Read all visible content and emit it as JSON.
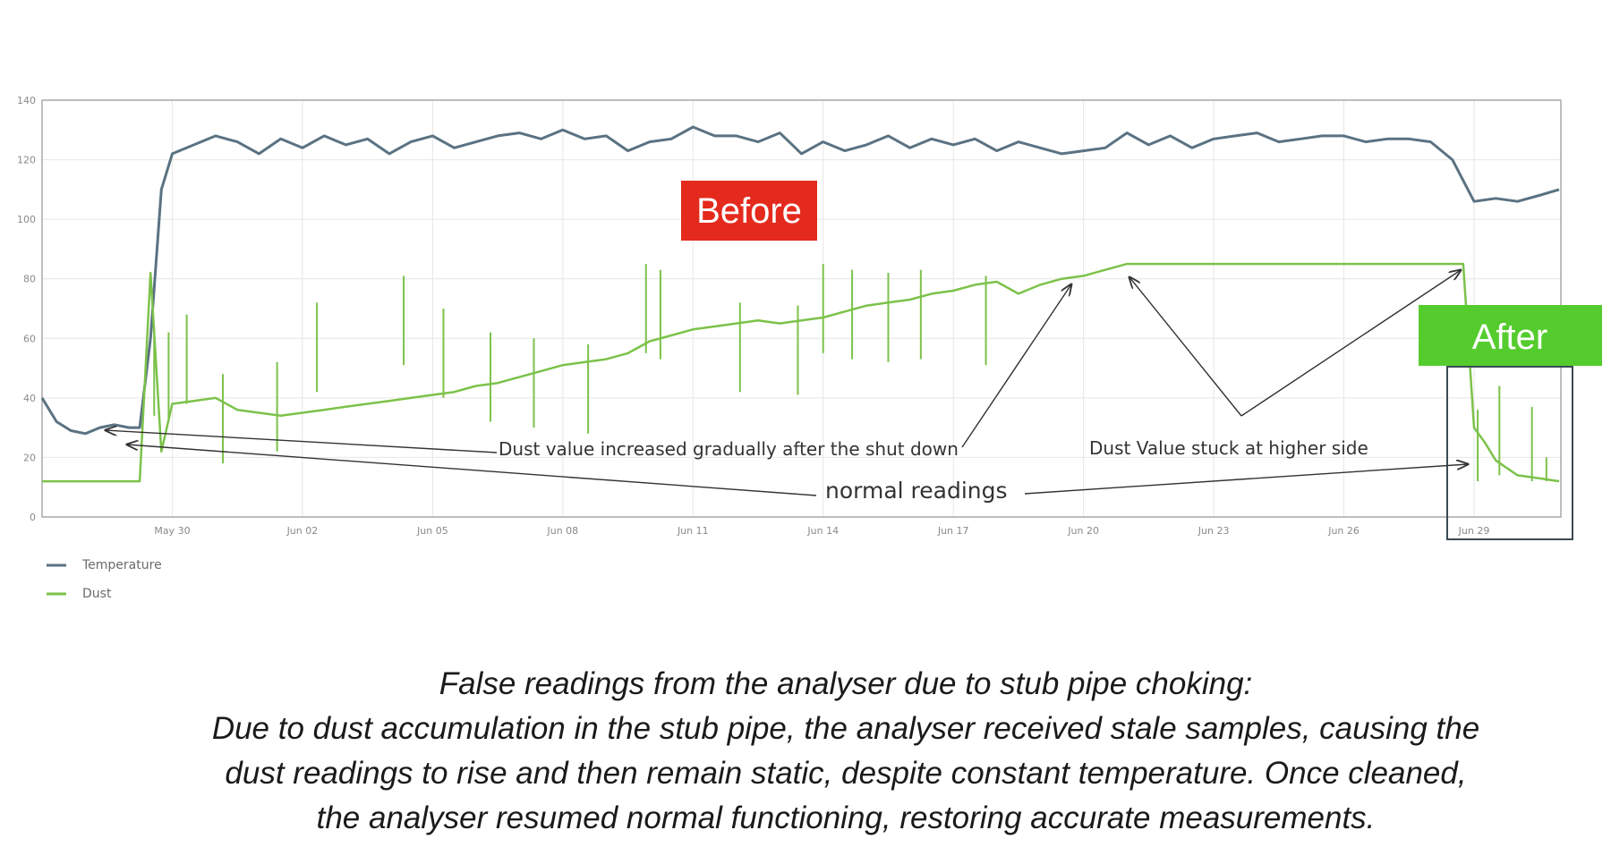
{
  "chart_data": {
    "type": "line",
    "title": "",
    "xlabel": "",
    "ylabel": "",
    "ylim": [
      0,
      140
    ],
    "y_ticks": [
      0,
      20,
      40,
      60,
      80,
      100,
      120,
      140
    ],
    "x_range": [
      "May 27",
      "Jun 30"
    ],
    "x_ticks": [
      {
        "date": "May 30",
        "label": "May 30"
      },
      {
        "date": "Jun 02",
        "label": "Jun 02"
      },
      {
        "date": "Jun 05",
        "label": "Jun 05"
      },
      {
        "date": "Jun 08",
        "label": "Jun 08"
      },
      {
        "date": "Jun 11",
        "label": "Jun 11"
      },
      {
        "date": "Jun 14",
        "label": "Jun 14"
      },
      {
        "date": "Jun 17",
        "label": "Jun 17"
      },
      {
        "date": "Jun 20",
        "label": "Jun 20"
      },
      {
        "date": "Jun 23",
        "label": "Jun 23"
      },
      {
        "date": "Jun 26",
        "label": "Jun 26"
      },
      {
        "date": "Jun 29",
        "label": "Jun 29"
      }
    ],
    "grid": true,
    "legend_position": "bottom-left",
    "series": [
      {
        "name": "Temperature",
        "color": "#5a7282",
        "points": [
          [
            "May 27 00:00",
            40
          ],
          [
            "May 27 08:00",
            32
          ],
          [
            "May 27 16:00",
            29
          ],
          [
            "May 28 00:00",
            28
          ],
          [
            "May 28 08:00",
            30
          ],
          [
            "May 28 16:00",
            31
          ],
          [
            "May 29 00:00",
            30
          ],
          [
            "May 29 06:00",
            30
          ],
          [
            "May 29 12:00",
            60
          ],
          [
            "May 29 18:00",
            110
          ],
          [
            "May 30 00:00",
            122
          ],
          [
            "May 30 12:00",
            125
          ],
          [
            "May 31 00:00",
            128
          ],
          [
            "May 31 12:00",
            126
          ],
          [
            "Jun 01 00:00",
            122
          ],
          [
            "Jun 01 12:00",
            127
          ],
          [
            "Jun 02 00:00",
            124
          ],
          [
            "Jun 02 12:00",
            128
          ],
          [
            "Jun 03 00:00",
            125
          ],
          [
            "Jun 03 12:00",
            127
          ],
          [
            "Jun 04 00:00",
            122
          ],
          [
            "Jun 04 12:00",
            126
          ],
          [
            "Jun 05 00:00",
            128
          ],
          [
            "Jun 05 12:00",
            124
          ],
          [
            "Jun 06 00:00",
            126
          ],
          [
            "Jun 06 12:00",
            128
          ],
          [
            "Jun 07 00:00",
            129
          ],
          [
            "Jun 07 12:00",
            127
          ],
          [
            "Jun 08 00:00",
            130
          ],
          [
            "Jun 08 12:00",
            127
          ],
          [
            "Jun 09 00:00",
            128
          ],
          [
            "Jun 09 12:00",
            123
          ],
          [
            "Jun 10 00:00",
            126
          ],
          [
            "Jun 10 12:00",
            127
          ],
          [
            "Jun 11 00:00",
            131
          ],
          [
            "Jun 11 12:00",
            128
          ],
          [
            "Jun 12 00:00",
            128
          ],
          [
            "Jun 12 12:00",
            126
          ],
          [
            "Jun 13 00:00",
            129
          ],
          [
            "Jun 13 12:00",
            122
          ],
          [
            "Jun 14 00:00",
            126
          ],
          [
            "Jun 14 12:00",
            123
          ],
          [
            "Jun 15 00:00",
            125
          ],
          [
            "Jun 15 12:00",
            128
          ],
          [
            "Jun 16 00:00",
            124
          ],
          [
            "Jun 16 12:00",
            127
          ],
          [
            "Jun 17 00:00",
            125
          ],
          [
            "Jun 17 12:00",
            127
          ],
          [
            "Jun 18 00:00",
            123
          ],
          [
            "Jun 18 12:00",
            126
          ],
          [
            "Jun 19 00:00",
            124
          ],
          [
            "Jun 19 12:00",
            122
          ],
          [
            "Jun 20 00:00",
            123
          ],
          [
            "Jun 20 12:00",
            124
          ],
          [
            "Jun 21 00:00",
            129
          ],
          [
            "Jun 21 12:00",
            125
          ],
          [
            "Jun 22 00:00",
            128
          ],
          [
            "Jun 22 12:00",
            124
          ],
          [
            "Jun 23 00:00",
            127
          ],
          [
            "Jun 23 12:00",
            128
          ],
          [
            "Jun 24 00:00",
            129
          ],
          [
            "Jun 24 12:00",
            126
          ],
          [
            "Jun 25 00:00",
            127
          ],
          [
            "Jun 25 12:00",
            128
          ],
          [
            "Jun 26 00:00",
            128
          ],
          [
            "Jun 26 12:00",
            126
          ],
          [
            "Jun 27 00:00",
            127
          ],
          [
            "Jun 27 12:00",
            127
          ],
          [
            "Jun 28 00:00",
            126
          ],
          [
            "Jun 28 12:00",
            120
          ],
          [
            "Jun 29 00:00",
            106
          ],
          [
            "Jun 29 12:00",
            107
          ],
          [
            "Jun 30 00:00",
            106
          ],
          [
            "Jun 30 12:00",
            108
          ],
          [
            "Jun 30 23:00",
            110
          ]
        ]
      },
      {
        "name": "Dust",
        "color": "#7cc24a",
        "points": [
          [
            "May 27 00:00",
            12
          ],
          [
            "May 27 12:00",
            12
          ],
          [
            "May 28 00:00",
            12
          ],
          [
            "May 28 12:00",
            12
          ],
          [
            "May 29 00:00",
            12
          ],
          [
            "May 29 06:00",
            12
          ],
          [
            "May 29 12:00",
            82
          ],
          [
            "May 29 18:00",
            22
          ],
          [
            "May 30 00:00",
            38
          ],
          [
            "May 30 12:00",
            39
          ],
          [
            "May 31 00:00",
            40
          ],
          [
            "May 31 12:00",
            36
          ],
          [
            "Jun 01 00:00",
            35
          ],
          [
            "Jun 01 12:00",
            34
          ],
          [
            "Jun 02 00:00",
            35
          ],
          [
            "Jun 02 12:00",
            36
          ],
          [
            "Jun 03 00:00",
            37
          ],
          [
            "Jun 03 12:00",
            38
          ],
          [
            "Jun 04 00:00",
            39
          ],
          [
            "Jun 04 12:00",
            40
          ],
          [
            "Jun 05 00:00",
            41
          ],
          [
            "Jun 05 12:00",
            42
          ],
          [
            "Jun 06 00:00",
            44
          ],
          [
            "Jun 06 12:00",
            45
          ],
          [
            "Jun 07 00:00",
            47
          ],
          [
            "Jun 07 12:00",
            49
          ],
          [
            "Jun 08 00:00",
            51
          ],
          [
            "Jun 08 12:00",
            52
          ],
          [
            "Jun 09 00:00",
            53
          ],
          [
            "Jun 09 12:00",
            55
          ],
          [
            "Jun 10 00:00",
            59
          ],
          [
            "Jun 10 12:00",
            61
          ],
          [
            "Jun 11 00:00",
            63
          ],
          [
            "Jun 11 12:00",
            64
          ],
          [
            "Jun 12 00:00",
            65
          ],
          [
            "Jun 12 12:00",
            66
          ],
          [
            "Jun 13 00:00",
            65
          ],
          [
            "Jun 13 12:00",
            66
          ],
          [
            "Jun 14 00:00",
            67
          ],
          [
            "Jun 14 12:00",
            69
          ],
          [
            "Jun 15 00:00",
            71
          ],
          [
            "Jun 15 12:00",
            72
          ],
          [
            "Jun 16 00:00",
            73
          ],
          [
            "Jun 16 12:00",
            75
          ],
          [
            "Jun 17 00:00",
            76
          ],
          [
            "Jun 17 12:00",
            78
          ],
          [
            "Jun 18 00:00",
            79
          ],
          [
            "Jun 18 12:00",
            75
          ],
          [
            "Jun 19 00:00",
            78
          ],
          [
            "Jun 19 12:00",
            80
          ],
          [
            "Jun 20 00:00",
            81
          ],
          [
            "Jun 20 12:00",
            83
          ],
          [
            "Jun 21 00:00",
            85
          ],
          [
            "Jun 22 00:00",
            85
          ],
          [
            "Jun 23 00:00",
            85
          ],
          [
            "Jun 24 00:00",
            85
          ],
          [
            "Jun 25 00:00",
            85
          ],
          [
            "Jun 26 00:00",
            85
          ],
          [
            "Jun 27 00:00",
            85
          ],
          [
            "Jun 28 00:00",
            85
          ],
          [
            "Jun 28 18:00",
            85
          ],
          [
            "Jun 29 00:00",
            30
          ],
          [
            "Jun 29 06:00",
            25
          ],
          [
            "Jun 29 12:00",
            19
          ],
          [
            "Jun 30 00:00",
            14
          ],
          [
            "Jun 30 12:00",
            13
          ],
          [
            "Jun 30 23:00",
            12
          ]
        ],
        "spikes": [
          [
            "May 29 14:00",
            64
          ],
          [
            "May 29 22:00",
            62
          ],
          [
            "May 30 08:00",
            68
          ],
          [
            "May 31 04:00",
            48
          ],
          [
            "Jun 01 10:00",
            52
          ],
          [
            "Jun 02 08:00",
            72
          ],
          [
            "Jun 04 08:00",
            81
          ],
          [
            "Jun 05 06:00",
            70
          ],
          [
            "Jun 06 08:00",
            62
          ],
          [
            "Jun 07 08:00",
            60
          ],
          [
            "Jun 08 14:00",
            58
          ],
          [
            "Jun 09 22:00",
            85
          ],
          [
            "Jun 10 06:00",
            83
          ],
          [
            "Jun 12 02:00",
            72
          ],
          [
            "Jun 13 10:00",
            71
          ],
          [
            "Jun 14 00:00",
            85
          ],
          [
            "Jun 14 16:00",
            83
          ],
          [
            "Jun 15 12:00",
            82
          ],
          [
            "Jun 16 06:00",
            83
          ],
          [
            "Jun 17 18:00",
            81
          ],
          [
            "Jun 29 02:00",
            36
          ],
          [
            "Jun 29 14:00",
            44
          ],
          [
            "Jun 30 08:00",
            37
          ],
          [
            "Jun 30 16:00",
            20
          ]
        ]
      }
    ],
    "badges": {
      "before": {
        "label": "Before",
        "color": "#e42a1d"
      },
      "after": {
        "label": "After",
        "color": "#55cc2e"
      }
    },
    "annotations": {
      "gradual": "Dust value increased gradually after the shut down",
      "stuck": "Dust Value stuck at higher side",
      "normal": "normal readings"
    }
  },
  "caption": {
    "line1": "False readings from the analyser due to stub pipe choking:",
    "line2": "Due to dust accumulation in the stub pipe, the analyser received stale samples, causing the",
    "line3": "dust readings to rise and then remain static, despite constant temperature. Once cleaned,",
    "line4": "the analyser resumed normal functioning, restoring accurate measurements."
  }
}
